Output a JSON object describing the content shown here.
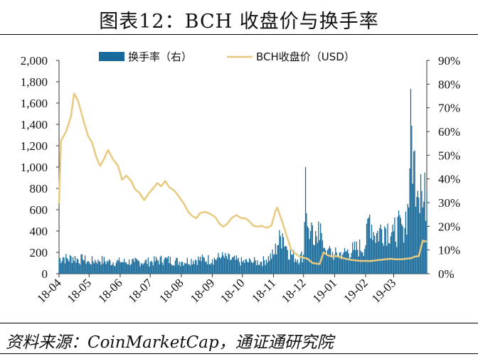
{
  "title": "图表12：BCH 收盘价与换手率",
  "source": "资料来源：CoinMarketCap，通证通研究院",
  "colors": {
    "price": "#e8c97f",
    "turnover": "#176a9a",
    "axis": "#333333"
  },
  "chart_data": {
    "type": "bar+line",
    "x_labels": [
      "18-04",
      "18-05",
      "18-06",
      "18-07",
      "18-08",
      "18-09",
      "18-10",
      "18-11",
      "18-12",
      "19-01",
      "19-02",
      "19-03"
    ],
    "y_left": {
      "ylim": [
        0,
        2000
      ],
      "ticks": [
        "0",
        "200",
        "400",
        "600",
        "800",
        "1,000",
        "1,200",
        "1,400",
        "1,600",
        "1,800",
        "2,000"
      ]
    },
    "y_right": {
      "ylim": [
        0,
        90
      ],
      "ticks": [
        "0%",
        "10%",
        "20%",
        "30%",
        "40%",
        "50%",
        "60%",
        "70%",
        "80%",
        "90%"
      ]
    },
    "legend_placement": "top",
    "series": [
      {
        "name": "换手率（右）",
        "type": "bar",
        "axis": "right",
        "unit": "%",
        "points": [
          [
            "2018-04-01",
            6
          ],
          [
            "2018-04-05",
            7
          ],
          [
            "2018-04-10",
            6
          ],
          [
            "2018-04-15",
            7
          ],
          [
            "2018-04-20",
            6
          ],
          [
            "2018-04-25",
            6
          ],
          [
            "2018-05-01",
            5
          ],
          [
            "2018-05-10",
            6
          ],
          [
            "2018-05-20",
            5
          ],
          [
            "2018-06-01",
            5
          ],
          [
            "2018-06-15",
            5
          ],
          [
            "2018-07-01",
            5
          ],
          [
            "2018-07-15",
            6
          ],
          [
            "2018-08-01",
            5
          ],
          [
            "2018-08-15",
            6
          ],
          [
            "2018-09-01",
            6
          ],
          [
            "2018-09-10",
            7
          ],
          [
            "2018-09-20",
            6
          ],
          [
            "2018-10-01",
            5
          ],
          [
            "2018-10-10",
            5
          ],
          [
            "2018-10-20",
            5
          ],
          [
            "2018-10-25",
            6
          ],
          [
            "2018-11-01",
            8
          ],
          [
            "2018-11-05",
            12
          ],
          [
            "2018-11-10",
            17
          ],
          [
            "2018-11-15",
            10
          ],
          [
            "2018-11-20",
            8
          ],
          [
            "2018-11-25",
            6
          ],
          [
            "2018-12-01",
            8
          ],
          [
            "2018-12-03",
            45
          ],
          [
            "2018-12-05",
            20
          ],
          [
            "2018-12-08",
            18
          ],
          [
            "2018-12-12",
            12
          ],
          [
            "2018-12-16",
            22
          ],
          [
            "2018-12-20",
            14
          ],
          [
            "2018-12-25",
            10
          ],
          [
            "2019-01-01",
            8
          ],
          [
            "2019-01-10",
            9
          ],
          [
            "2019-01-20",
            10
          ],
          [
            "2019-02-01",
            12
          ],
          [
            "2019-02-05",
            25
          ],
          [
            "2019-02-10",
            16
          ],
          [
            "2019-02-20",
            20
          ],
          [
            "2019-03-01",
            18
          ],
          [
            "2019-03-10",
            20
          ],
          [
            "2019-03-16",
            28
          ],
          [
            "2019-03-18",
            78
          ],
          [
            "2019-03-20",
            38
          ],
          [
            "2019-03-22",
            52
          ],
          [
            "2019-03-25",
            35
          ],
          [
            "2019-03-28",
            42
          ],
          [
            "2019-03-30",
            28
          ],
          [
            "2019-04-03",
            35
          ]
        ]
      },
      {
        "name": "BCH收盘价（USD）",
        "type": "line",
        "axis": "left",
        "unit": "USD",
        "points": [
          [
            "2018-04-01",
            660
          ],
          [
            "2018-04-03",
            1250
          ],
          [
            "2018-04-08",
            1330
          ],
          [
            "2018-04-13",
            1480
          ],
          [
            "2018-04-16",
            1690
          ],
          [
            "2018-04-20",
            1620
          ],
          [
            "2018-04-25",
            1450
          ],
          [
            "2018-04-30",
            1290
          ],
          [
            "2018-05-04",
            1230
          ],
          [
            "2018-05-08",
            1100
          ],
          [
            "2018-05-12",
            1010
          ],
          [
            "2018-05-16",
            1080
          ],
          [
            "2018-05-20",
            1160
          ],
          [
            "2018-05-25",
            1070
          ],
          [
            "2018-05-30",
            1010
          ],
          [
            "2018-06-03",
            880
          ],
          [
            "2018-06-07",
            920
          ],
          [
            "2018-06-12",
            870
          ],
          [
            "2018-06-16",
            790
          ],
          [
            "2018-06-20",
            760
          ],
          [
            "2018-06-25",
            690
          ],
          [
            "2018-06-30",
            760
          ],
          [
            "2018-07-04",
            800
          ],
          [
            "2018-07-08",
            850
          ],
          [
            "2018-07-12",
            820
          ],
          [
            "2018-07-16",
            870
          ],
          [
            "2018-07-20",
            810
          ],
          [
            "2018-07-25",
            780
          ],
          [
            "2018-07-30",
            720
          ],
          [
            "2018-08-04",
            650
          ],
          [
            "2018-08-08",
            580
          ],
          [
            "2018-08-12",
            540
          ],
          [
            "2018-08-16",
            520
          ],
          [
            "2018-08-20",
            570
          ],
          [
            "2018-08-25",
            580
          ],
          [
            "2018-08-30",
            560
          ],
          [
            "2018-09-04",
            530
          ],
          [
            "2018-09-08",
            470
          ],
          [
            "2018-09-12",
            440
          ],
          [
            "2018-09-16",
            470
          ],
          [
            "2018-09-20",
            520
          ],
          [
            "2018-09-25",
            550
          ],
          [
            "2018-09-30",
            520
          ],
          [
            "2018-10-04",
            520
          ],
          [
            "2018-10-08",
            490
          ],
          [
            "2018-10-12",
            450
          ],
          [
            "2018-10-16",
            440
          ],
          [
            "2018-10-20",
            450
          ],
          [
            "2018-10-25",
            430
          ],
          [
            "2018-10-30",
            450
          ],
          [
            "2018-11-01",
            520
          ],
          [
            "2018-11-03",
            590
          ],
          [
            "2018-11-05",
            620
          ],
          [
            "2018-11-07",
            560
          ],
          [
            "2018-11-09",
            510
          ],
          [
            "2018-11-12",
            420
          ],
          [
            "2018-11-15",
            330
          ],
          [
            "2018-11-19",
            220
          ],
          [
            "2018-11-23",
            190
          ],
          [
            "2018-11-27",
            160
          ],
          [
            "2018-12-01",
            150
          ],
          [
            "2018-12-05",
            140
          ],
          [
            "2018-12-10",
            100
          ],
          [
            "2018-12-14",
            95
          ],
          [
            "2018-12-17",
            90
          ],
          [
            "2018-12-21",
            200
          ],
          [
            "2018-12-25",
            175
          ],
          [
            "2018-12-29",
            160
          ],
          [
            "2019-01-03",
            165
          ],
          [
            "2019-01-08",
            150
          ],
          [
            "2019-01-12",
            140
          ],
          [
            "2019-01-17",
            130
          ],
          [
            "2019-01-22",
            125
          ],
          [
            "2019-01-27",
            120
          ],
          [
            "2019-02-01",
            120
          ],
          [
            "2019-02-06",
            118
          ],
          [
            "2019-02-11",
            125
          ],
          [
            "2019-02-16",
            130
          ],
          [
            "2019-02-21",
            135
          ],
          [
            "2019-02-26",
            140
          ],
          [
            "2019-03-03",
            135
          ],
          [
            "2019-03-08",
            135
          ],
          [
            "2019-03-13",
            140
          ],
          [
            "2019-03-18",
            145
          ],
          [
            "2019-03-22",
            160
          ],
          [
            "2019-03-26",
            165
          ],
          [
            "2019-03-30",
            310
          ],
          [
            "2019-04-03",
            300
          ]
        ]
      }
    ]
  }
}
